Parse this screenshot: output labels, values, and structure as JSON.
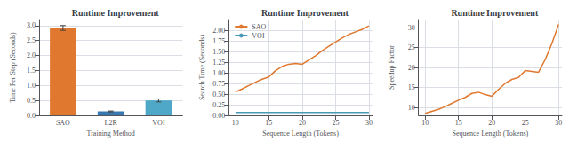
{
  "chart_data": [
    {
      "type": "bar",
      "title": "Runtime Improvement",
      "categories": [
        "SAO",
        "L2R",
        "VOI"
      ],
      "values": [
        2.92,
        0.13,
        0.5
      ],
      "errors": [
        0.08,
        0.015,
        0.05
      ],
      "colors": [
        "#E07830",
        "#3878B0",
        "#50A8C8"
      ],
      "xlabel": "Training Method",
      "ylabel": "Time Per Step (Seconds)",
      "ylim": [
        0,
        3.2
      ],
      "yticks": [
        {
          "value": 0,
          "label": "0.0"
        },
        0.5,
        {
          "value": 1,
          "label": "1.0"
        },
        1.5,
        {
          "value": 2,
          "label": "2.0"
        },
        2.5,
        {
          "value": 3,
          "label": "3.0"
        }
      ],
      "grid": true
    },
    {
      "type": "line",
      "title": "Runtime Improvement",
      "x": [
        10,
        11,
        12,
        13,
        14,
        15,
        16,
        17,
        18,
        19,
        20,
        21,
        22,
        23,
        24,
        25,
        26,
        27,
        28,
        29,
        30
      ],
      "series": [
        {
          "name": "SAO",
          "color": "#E07830",
          "values": [
            0.55,
            0.62,
            0.7,
            0.78,
            0.85,
            0.9,
            1.05,
            1.15,
            1.2,
            1.22,
            1.2,
            1.3,
            1.4,
            1.52,
            1.62,
            1.72,
            1.82,
            1.9,
            1.96,
            2.02,
            2.1
          ]
        },
        {
          "name": "VOI",
          "color": "#4898B8",
          "values": [
            0.07,
            0.07,
            0.07,
            0.07,
            0.07,
            0.07,
            0.07,
            0.07,
            0.07,
            0.07,
            0.07,
            0.07,
            0.07,
            0.07,
            0.07,
            0.07,
            0.07,
            0.07,
            0.07,
            0.07,
            0.07
          ]
        }
      ],
      "xlabel": "Sequence Length (Tokens)",
      "ylabel": "Search Time (Seconds)",
      "xlim": [
        9,
        30.5
      ],
      "xticks": [
        10,
        15,
        20,
        25,
        30
      ],
      "ylim": [
        0,
        2.25
      ],
      "yticks": [
        {
          "value": 0,
          "label": "0.00"
        },
        0.25,
        {
          "value": 0.5,
          "label": "0.50"
        },
        0.75,
        {
          "value": 1,
          "label": "1.00"
        },
        1.25,
        {
          "value": 1.5,
          "label": "1.50"
        },
        1.75,
        {
          "value": 2,
          "label": "2.00"
        }
      ],
      "grid": true,
      "legend": "upper left"
    },
    {
      "type": "line",
      "title": "Runtime Improvement",
      "x": [
        10,
        11,
        12,
        13,
        14,
        15,
        16,
        17,
        18,
        19,
        20,
        21,
        22,
        23,
        24,
        25,
        26,
        27,
        28,
        29,
        30
      ],
      "values": [
        8.5,
        9.0,
        9.5,
        10.2,
        11.0,
        11.8,
        12.5,
        13.5,
        13.8,
        13.2,
        12.8,
        14.5,
        16.0,
        17.0,
        17.5,
        19.2,
        19.0,
        18.8,
        22.0,
        26.0,
        30.8
      ],
      "color": "#E07830",
      "xlabel": "Sequence Length (Tokens)",
      "ylabel": "Speedup Factor",
      "xlim": [
        9,
        30.5
      ],
      "xticks": [
        10,
        15,
        20,
        25,
        30
      ],
      "ylim": [
        8,
        32
      ],
      "yticks": [
        10,
        15,
        20,
        25,
        30
      ],
      "grid": true
    }
  ]
}
